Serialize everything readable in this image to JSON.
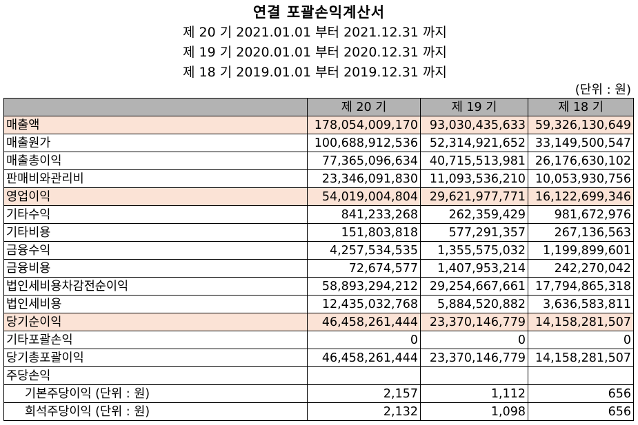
{
  "title": "연결 포괄손익계산서",
  "periods": [
    "제 20 기 2021.01.01 부터 2021.12.31 까지",
    "제 19 기 2020.01.01 부터 2020.12.31 까지",
    "제 18 기 2019.01.01 부터 2019.12.31 까지"
  ],
  "unit": "(단위 : 원)",
  "header": [
    "",
    "제 20 기",
    "제 19 기",
    "제 18 기"
  ],
  "highlight_color": "#fbe3d6",
  "header_color": "#b3b3b3",
  "rows": [
    {
      "label": "매출액",
      "v20": "178,054,009,170",
      "v19": "93,030,435,633",
      "v18": "59,326,130,649",
      "highlight": true
    },
    {
      "label": "매출원가",
      "v20": "100,688,912,536",
      "v19": "52,314,921,652",
      "v18": "33,149,500,547",
      "highlight": false
    },
    {
      "label": "매출총이익",
      "v20": "77,365,096,634",
      "v19": "40,715,513,981",
      "v18": "26,176,630,102",
      "highlight": false
    },
    {
      "label": "판매비와관리비",
      "v20": "23,346,091,830",
      "v19": "11,093,536,210",
      "v18": "10,053,930,756",
      "highlight": false
    },
    {
      "label": "영업이익",
      "v20": "54,019,004,804",
      "v19": "29,621,977,771",
      "v18": "16,122,699,346",
      "highlight": true
    },
    {
      "label": "기타수익",
      "v20": "841,233,268",
      "v19": "262,359,429",
      "v18": "981,672,976",
      "highlight": false
    },
    {
      "label": "기타비용",
      "v20": "151,803,818",
      "v19": "577,291,357",
      "v18": "267,136,563",
      "highlight": false
    },
    {
      "label": "금융수익",
      "v20": "4,257,534,535",
      "v19": "1,355,575,032",
      "v18": "1,199,899,601",
      "highlight": false
    },
    {
      "label": "금융비용",
      "v20": "72,674,577",
      "v19": "1,407,953,214",
      "v18": "242,270,042",
      "highlight": false
    },
    {
      "label": "법인세비용차감전순이익",
      "v20": "58,893,294,212",
      "v19": "29,254,667,661",
      "v18": "17,794,865,318",
      "highlight": false
    },
    {
      "label": "법인세비용",
      "v20": "12,435,032,768",
      "v19": "5,884,520,882",
      "v18": "3,636,583,811",
      "highlight": false
    },
    {
      "label": "당기순이익",
      "v20": "46,458,261,444",
      "v19": "23,370,146,779",
      "v18": "14,158,281,507",
      "highlight": true
    },
    {
      "label": "기타포괄손익",
      "v20": "0",
      "v19": "0",
      "v18": "0",
      "highlight": false
    },
    {
      "label": "당기총포괄이익",
      "v20": "46,458,261,444",
      "v19": "23,370,146,779",
      "v18": "14,158,281,507",
      "highlight": false
    },
    {
      "label": "주당손익",
      "v20": "",
      "v19": "",
      "v18": "",
      "highlight": false
    },
    {
      "label": "기본주당이익 (단위 : 원)",
      "v20": "2,157",
      "v19": "1,112",
      "v18": "656",
      "highlight": false,
      "indent": true
    },
    {
      "label": "희석주당이익 (단위 : 원)",
      "v20": "2,132",
      "v19": "1,098",
      "v18": "656",
      "highlight": false,
      "indent": true
    }
  ]
}
